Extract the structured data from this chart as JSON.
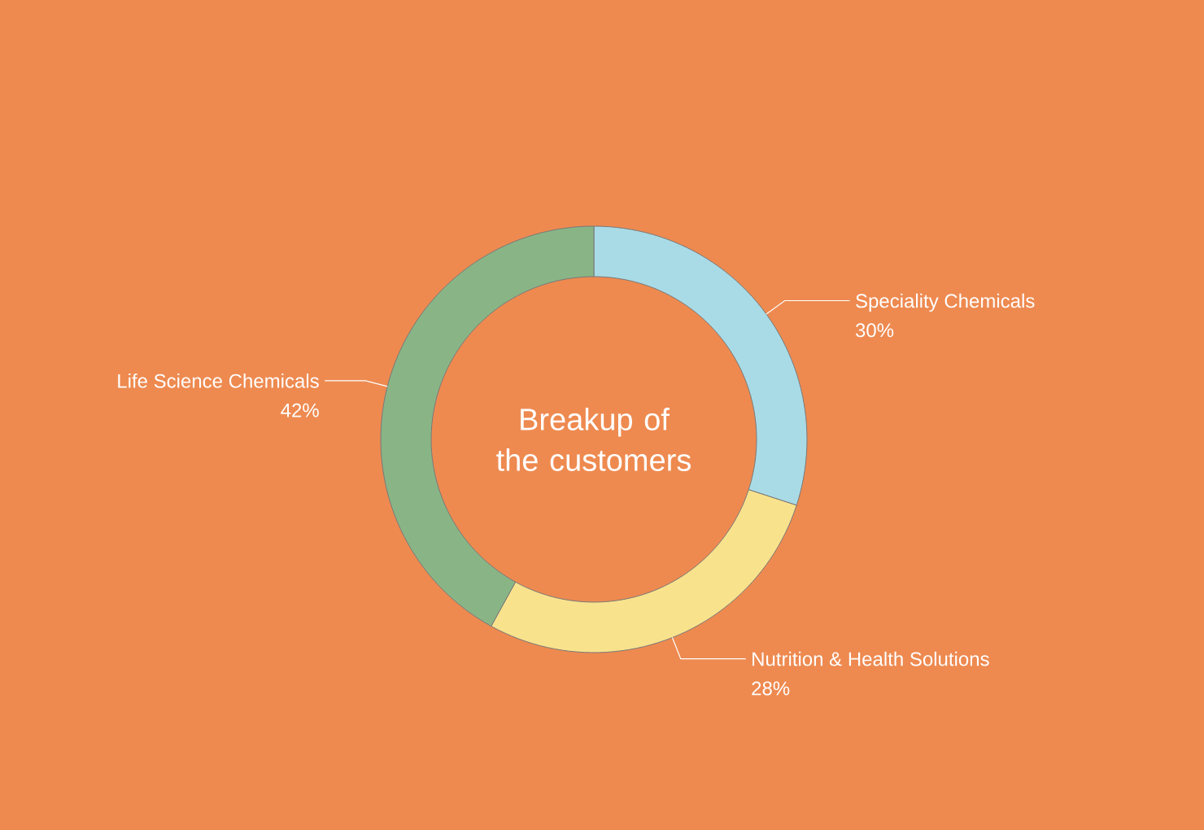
{
  "chart_data": {
    "type": "donut",
    "title": "Breakup of the customers",
    "categories": [
      "Speciality Chemicals",
      "Nutrition & Health Solutions",
      "Life Science Chemicals"
    ],
    "values": [
      30,
      28,
      42
    ],
    "colors": [
      "#a9dbe6",
      "#f9e28c",
      "#89b586"
    ],
    "value_labels": [
      "30%",
      "28%",
      "42%"
    ]
  }
}
